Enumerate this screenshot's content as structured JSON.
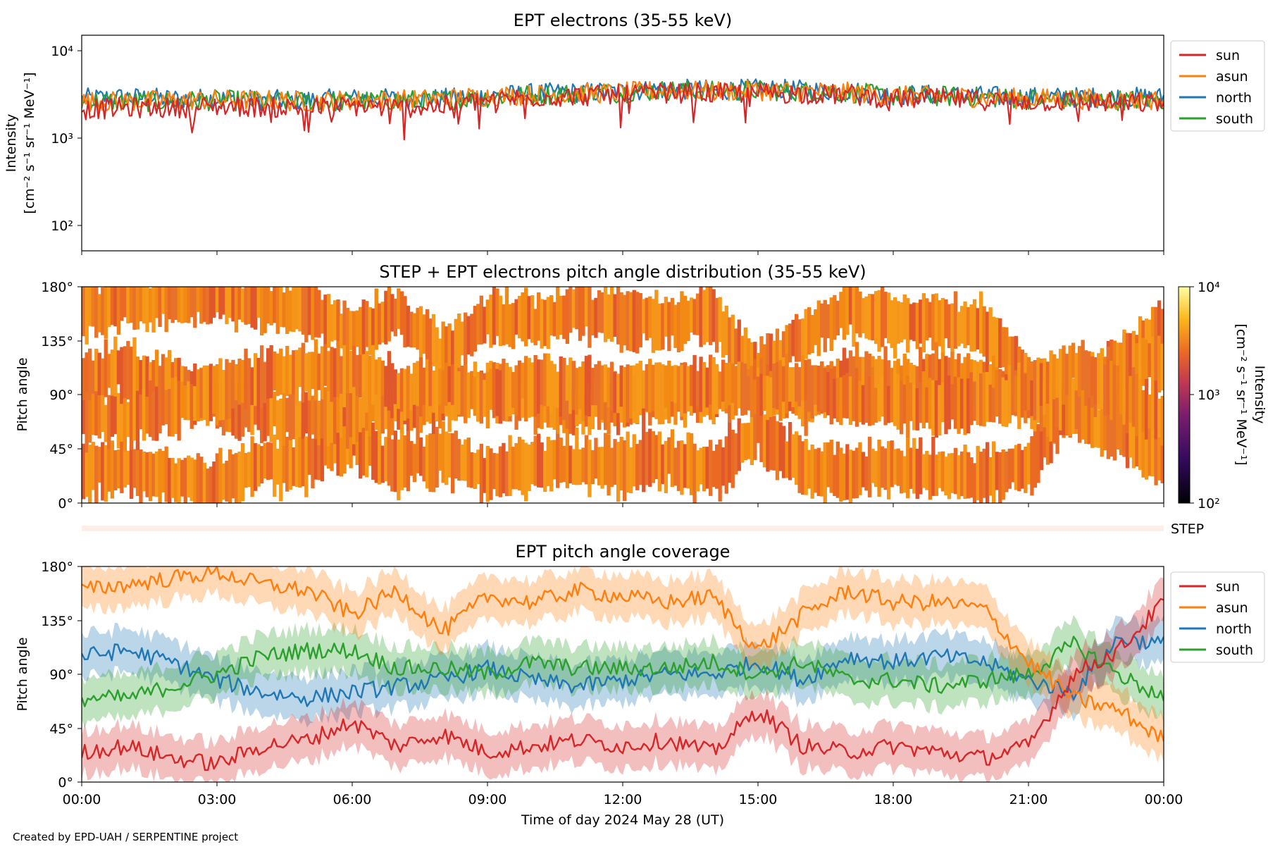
{
  "credit": "Created by EPD-UAH / SERPENTINE project",
  "xaxis": {
    "label": "Time of day 2024 May 28 (UT)",
    "ticks": [
      "00:00",
      "03:00",
      "06:00",
      "09:00",
      "12:00",
      "15:00",
      "18:00",
      "21:00",
      "00:00"
    ],
    "range_hours": [
      0,
      24
    ]
  },
  "colors": {
    "sun": "#d62728",
    "asun": "#ff7f0e",
    "north": "#1f77b4",
    "south": "#2ca02c",
    "step_band": "#fdeeea"
  },
  "panels": {
    "intensity": {
      "title": "EPT electrons (35-55 keV)",
      "ylabel_line1": "Intensity",
      "ylabel_line2": "[cm⁻² s⁻¹ sr⁻¹ MeV⁻¹]",
      "yticks": [
        "10²",
        "10³",
        "10⁴"
      ]
    },
    "pad": {
      "title": "STEP + EPT electrons pitch angle distribution (35-55 keV)",
      "ylabel": "Pitch angle",
      "yticks": [
        "0°",
        "45°",
        "90°",
        "135°",
        "180°"
      ],
      "colorbar_label": "Intensity",
      "colorbar_units": "[cm⁻² s⁻¹ sr⁻¹ MeV⁻¹]",
      "colorbar_ticks": [
        "10²",
        "10³",
        "10⁴"
      ]
    },
    "step": {
      "label": "STEP"
    },
    "coverage": {
      "title": "EPT pitch angle coverage",
      "ylabel": "Pitch angle",
      "yticks": [
        "0°",
        "45°",
        "90°",
        "135°",
        "180°"
      ]
    }
  },
  "chart_data": [
    {
      "type": "line",
      "title": "EPT electrons (35-55 keV)",
      "xlabel": "Time of day 2024 May 28 (UT)",
      "ylabel": "Intensity [cm⁻² s⁻¹ sr⁻¹ MeV⁻¹]",
      "yscale": "log",
      "ylim": [
        50,
        15000
      ],
      "legend_position": "outside-right",
      "x": [
        "00:00",
        "01:00",
        "02:00",
        "03:00",
        "04:00",
        "05:00",
        "06:00",
        "07:00",
        "08:00",
        "09:00",
        "10:00",
        "11:00",
        "12:00",
        "13:00",
        "14:00",
        "15:00",
        "16:00",
        "17:00",
        "18:00",
        "19:00",
        "20:00",
        "21:00",
        "22:00",
        "23:00",
        "24:00"
      ],
      "series": [
        {
          "name": "sun",
          "values": [
            2100,
            2200,
            2200,
            2300,
            2250,
            2200,
            2300,
            2200,
            2300,
            2700,
            2900,
            3000,
            3100,
            3300,
            3200,
            3300,
            3200,
            3100,
            2800,
            2800,
            2700,
            2600,
            2600,
            2500,
            2500
          ]
        },
        {
          "name": "asun",
          "values": [
            2600,
            2600,
            2700,
            2700,
            2700,
            2600,
            2700,
            2700,
            2800,
            3000,
            3100,
            3200,
            3300,
            3500,
            3400,
            3500,
            3400,
            3300,
            3000,
            3000,
            2900,
            2800,
            2800,
            2700,
            2700
          ]
        },
        {
          "name": "north",
          "values": [
            2800,
            2900,
            2800,
            2800,
            2700,
            2700,
            2800,
            2800,
            2800,
            3000,
            3200,
            3300,
            3400,
            3600,
            3500,
            3600,
            3500,
            3400,
            3100,
            3100,
            3000,
            2900,
            2900,
            2900,
            2900
          ]
        },
        {
          "name": "south",
          "values": [
            2600,
            2600,
            2600,
            2700,
            2600,
            2600,
            2600,
            2700,
            2700,
            2900,
            3100,
            3200,
            3300,
            3500,
            3400,
            3500,
            3400,
            3300,
            3000,
            3000,
            2900,
            2800,
            2700,
            2700,
            2700
          ]
        }
      ]
    },
    {
      "type": "heatmap",
      "title": "STEP + EPT electrons pitch angle distribution (35-55 keV)",
      "xlabel": "Time of day 2024 May 28 (UT)",
      "ylabel": "Pitch angle",
      "ylim": [
        0,
        180
      ],
      "colorscale": "log",
      "clim": [
        100,
        10000
      ],
      "colorbar_label": "Intensity [cm⁻² s⁻¹ sr⁻¹ MeV⁻¹]"
    },
    {
      "type": "line",
      "title": "EPT pitch angle coverage",
      "xlabel": "Time of day 2024 May 28 (UT)",
      "ylabel": "Pitch angle",
      "ylim": [
        0,
        180
      ],
      "legend_position": "outside-right",
      "x": [
        "00:00",
        "01:00",
        "02:00",
        "03:00",
        "04:00",
        "05:00",
        "06:00",
        "07:00",
        "08:00",
        "09:00",
        "10:00",
        "11:00",
        "12:00",
        "13:00",
        "14:00",
        "15:00",
        "16:00",
        "17:00",
        "18:00",
        "19:00",
        "20:00",
        "21:00",
        "22:00",
        "23:00",
        "24:00"
      ],
      "series": [
        {
          "name": "sun",
          "values": [
            25,
            30,
            20,
            15,
            30,
            35,
            50,
            30,
            40,
            25,
            30,
            35,
            30,
            35,
            25,
            60,
            30,
            25,
            30,
            25,
            20,
            30,
            90,
            110,
            150
          ]
        },
        {
          "name": "asun",
          "values": [
            160,
            165,
            170,
            175,
            165,
            160,
            140,
            160,
            125,
            155,
            150,
            160,
            155,
            150,
            155,
            110,
            140,
            160,
            150,
            150,
            145,
            100,
            70,
            60,
            35
          ]
        },
        {
          "name": "north",
          "values": [
            105,
            110,
            100,
            85,
            75,
            70,
            75,
            80,
            85,
            95,
            85,
            80,
            85,
            90,
            90,
            100,
            85,
            105,
            100,
            105,
            100,
            85,
            75,
            120,
            115
          ]
        },
        {
          "name": "south",
          "values": [
            70,
            70,
            80,
            90,
            105,
            110,
            110,
            95,
            95,
            90,
            100,
            95,
            95,
            95,
            100,
            90,
            100,
            85,
            85,
            80,
            85,
            90,
            115,
            90,
            70
          ]
        }
      ]
    }
  ]
}
